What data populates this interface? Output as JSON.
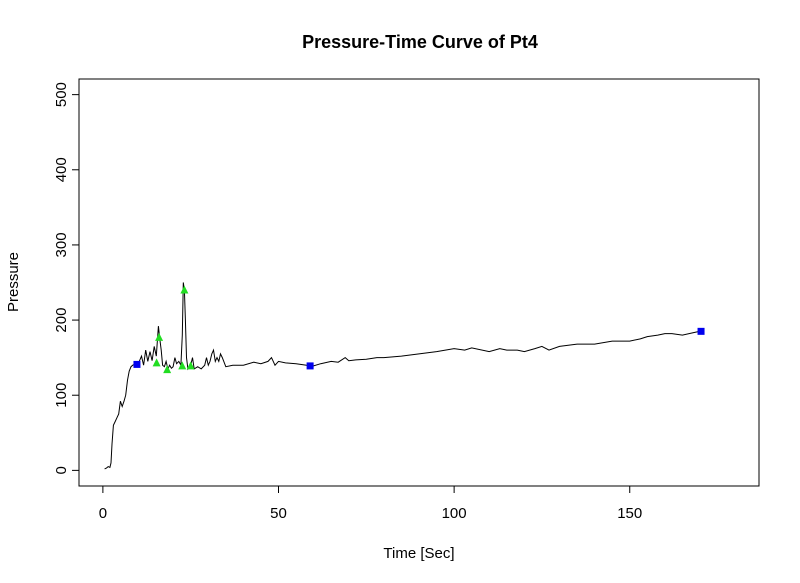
{
  "chart_data": {
    "type": "line",
    "title": "Pressure-Time Curve of Pt4",
    "xlabel": "Time [Sec]",
    "ylabel": "Pressure",
    "xlim": [
      -6.8,
      186.8
    ],
    "ylim": [
      -20.8,
      520.8
    ],
    "x_ticks": [
      0,
      50,
      100,
      150
    ],
    "y_ticks": [
      0,
      100,
      200,
      300,
      400,
      500
    ],
    "grid": false,
    "legend": "none",
    "series": [
      {
        "type": "line",
        "color": "#000000",
        "x": [
          0.5,
          1.0,
          1.5,
          2.0,
          2.3,
          2.6,
          3.0,
          3.5,
          4.0,
          4.5,
          5.0,
          5.5,
          6.0,
          6.5,
          7.0,
          7.5,
          8.0,
          8.5,
          9.0,
          10.0,
          11.0,
          11.6,
          12.2,
          12.8,
          13.4,
          14.0,
          14.6,
          15.2,
          15.8,
          16.2,
          16.6,
          17.0,
          17.5,
          18.0,
          18.5,
          19.0,
          19.5,
          20.0,
          20.5,
          21.0,
          21.6,
          22.2,
          22.6,
          22.9,
          23.2,
          23.5,
          23.8,
          24.2,
          24.6,
          25.0,
          25.5,
          26.0,
          27.0,
          28.0,
          29.0,
          29.5,
          30.0,
          30.5,
          31.0,
          31.5,
          32.0,
          32.5,
          33.0,
          33.5,
          34.0,
          35.0,
          37.0,
          40.0,
          43.0,
          45.0,
          47.0,
          48.0,
          49.0,
          50.0,
          52.0,
          55.0,
          58.0,
          60.0,
          62.0,
          65.0,
          67.0,
          69.0,
          70.0,
          72.0,
          75.0,
          78.0,
          80.0,
          85.0,
          90.0,
          95.0,
          100.0,
          103.0,
          105.0,
          110.0,
          113.0,
          115.0,
          118.0,
          120.0,
          123.0,
          125.0,
          127.0,
          130.0,
          135.0,
          140.0,
          145.0,
          150.0,
          153.0,
          155.0,
          158.0,
          160.0,
          162.0,
          165.0,
          168.0,
          170.0
        ],
        "y": [
          2,
          3,
          5,
          4,
          10,
          35,
          60,
          65,
          70,
          75,
          92,
          85,
          92,
          100,
          120,
          132,
          138,
          140,
          141,
          141,
          152,
          140,
          160,
          145,
          158,
          146,
          165,
          152,
          192,
          175,
          160,
          140,
          138,
          145,
          135,
          140,
          136,
          138,
          150,
          142,
          145,
          140,
          180,
          250,
          240,
          200,
          150,
          135,
          138,
          140,
          150,
          135,
          138,
          135,
          140,
          150,
          140,
          145,
          155,
          160,
          145,
          150,
          145,
          155,
          150,
          138,
          140,
          140,
          144,
          142,
          145,
          150,
          140,
          145,
          143,
          142,
          140,
          139,
          142,
          145,
          144,
          150,
          146,
          147,
          148,
          150,
          150,
          152,
          155,
          158,
          162,
          160,
          163,
          158,
          162,
          160,
          160,
          158,
          162,
          165,
          160,
          165,
          168,
          168,
          172,
          172,
          175,
          178,
          180,
          182,
          182,
          180,
          183,
          185
        ]
      },
      {
        "type": "scatter",
        "marker": "triangle",
        "color": "#22dd22",
        "x": [
          15.3,
          16.0,
          18.3,
          22.6,
          23.2,
          25.0
        ],
        "y": [
          143,
          177,
          134,
          139,
          240,
          139
        ]
      },
      {
        "type": "scatter",
        "marker": "square",
        "color": "#0000ee",
        "x": [
          9.7,
          59.0,
          170.3
        ],
        "y": [
          141,
          139,
          185
        ]
      }
    ]
  }
}
